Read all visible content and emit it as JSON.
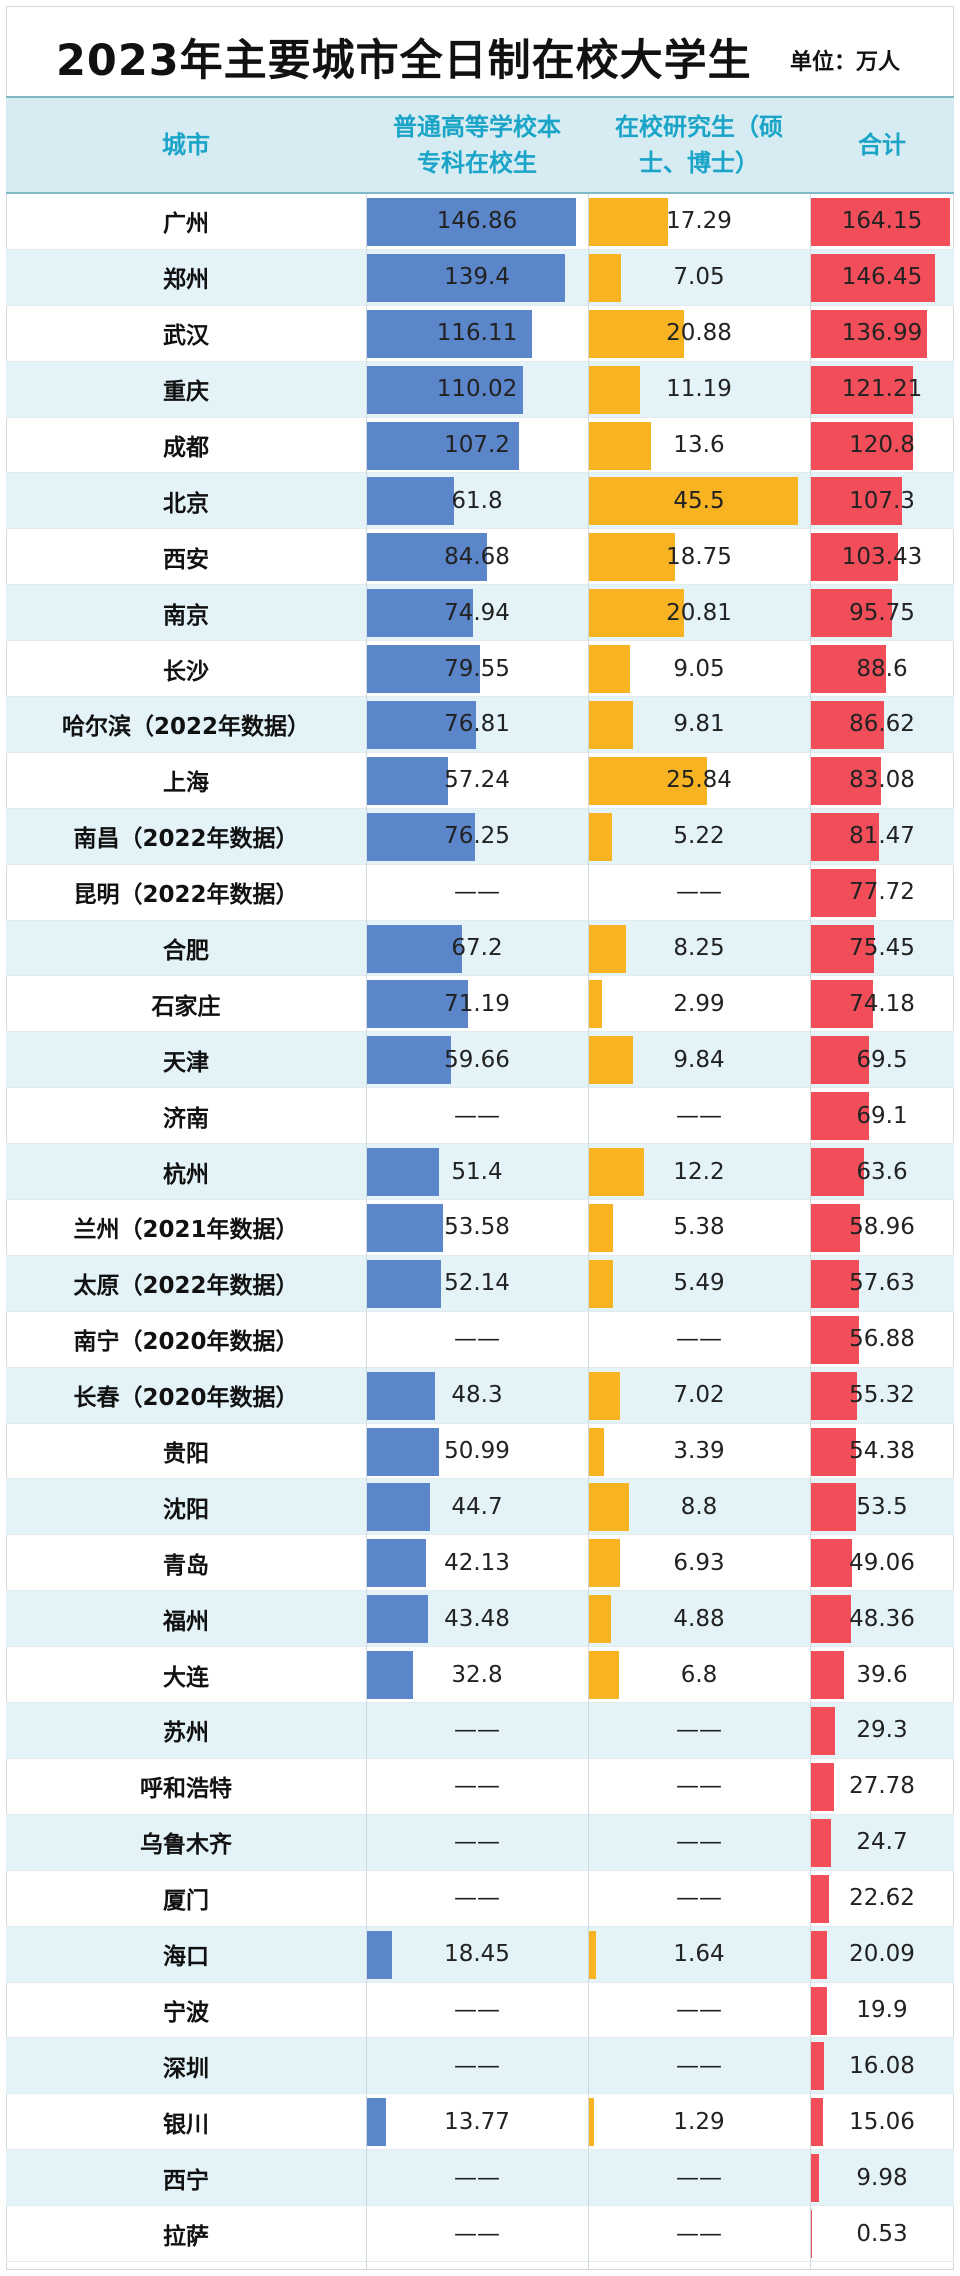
{
  "title": "2023年主要城市全日制在校大学生",
  "unit": "单位：万人",
  "headers": {
    "city": "城市",
    "undergrad_line1": "普通高等学校本",
    "undergrad_line2": "专科在校生",
    "postgrad_line1": "在校研究生（硕",
    "postgrad_line2": "士、博士）",
    "total": "合计"
  },
  "colors": {
    "undergrad_bar": "#5b86c9",
    "postgrad_bar": "#f8b323",
    "total_bar": "#f24e5a",
    "header_bg": "#d7ecf2",
    "header_text": "#1aa4c8",
    "alt_row": "#e3f3f8"
  },
  "chart_data": {
    "type": "table",
    "title": "2023年主要城市全日制在校大学生",
    "unit": "单位：万人",
    "columns": [
      "城市",
      "普通高等学校本专科在校生",
      "在校研究生（硕士、博士）",
      "合计"
    ],
    "scale_max": {
      "undergrad": 146.86,
      "postgrad": 45.5,
      "total": 164.15
    },
    "rows": [
      {
        "city": "广州",
        "undergrad": "146.86",
        "postgrad": "17.29",
        "total": "164.15"
      },
      {
        "city": "郑州",
        "undergrad": "139.4",
        "postgrad": "7.05",
        "total": "146.45"
      },
      {
        "city": "武汉",
        "undergrad": "116.11",
        "postgrad": "20.88",
        "total": "136.99"
      },
      {
        "city": "重庆",
        "undergrad": "110.02",
        "postgrad": "11.19",
        "total": "121.21"
      },
      {
        "city": "成都",
        "undergrad": "107.2",
        "postgrad": "13.6",
        "total": "120.8"
      },
      {
        "city": "北京",
        "undergrad": "61.8",
        "postgrad": "45.5",
        "total": "107.3"
      },
      {
        "city": "西安",
        "undergrad": "84.68",
        "postgrad": "18.75",
        "total": "103.43"
      },
      {
        "city": "南京",
        "undergrad": "74.94",
        "postgrad": "20.81",
        "total": "95.75"
      },
      {
        "city": "长沙",
        "undergrad": "79.55",
        "postgrad": "9.05",
        "total": "88.6"
      },
      {
        "city": "哈尔滨（2022年数据）",
        "undergrad": "76.81",
        "postgrad": "9.81",
        "total": "86.62"
      },
      {
        "city": "上海",
        "undergrad": "57.24",
        "postgrad": "25.84",
        "total": "83.08"
      },
      {
        "city": "南昌（2022年数据）",
        "undergrad": "76.25",
        "postgrad": "5.22",
        "total": "81.47"
      },
      {
        "city": "昆明（2022年数据）",
        "undergrad": "——",
        "postgrad": "——",
        "total": "77.72"
      },
      {
        "city": "合肥",
        "undergrad": "67.2",
        "postgrad": "8.25",
        "total": "75.45"
      },
      {
        "city": "石家庄",
        "undergrad": "71.19",
        "postgrad": "2.99",
        "total": "74.18"
      },
      {
        "city": "天津",
        "undergrad": "59.66",
        "postgrad": "9.84",
        "total": "69.5"
      },
      {
        "city": "济南",
        "undergrad": "——",
        "postgrad": "——",
        "total": "69.1"
      },
      {
        "city": "杭州",
        "undergrad": "51.4",
        "postgrad": "12.2",
        "total": "63.6"
      },
      {
        "city": "兰州（2021年数据）",
        "undergrad": "53.58",
        "postgrad": "5.38",
        "total": "58.96"
      },
      {
        "city": "太原（2022年数据）",
        "undergrad": "52.14",
        "postgrad": "5.49",
        "total": "57.63"
      },
      {
        "city": "南宁（2020年数据）",
        "undergrad": "——",
        "postgrad": "——",
        "total": "56.88"
      },
      {
        "city": "长春（2020年数据）",
        "undergrad": "48.3",
        "postgrad": "7.02",
        "total": "55.32"
      },
      {
        "city": "贵阳",
        "undergrad": "50.99",
        "postgrad": "3.39",
        "total": "54.38"
      },
      {
        "city": "沈阳",
        "undergrad": "44.7",
        "postgrad": "8.8",
        "total": "53.5"
      },
      {
        "city": "青岛",
        "undergrad": "42.13",
        "postgrad": "6.93",
        "total": "49.06"
      },
      {
        "city": "福州",
        "undergrad": "43.48",
        "postgrad": "4.88",
        "total": "48.36"
      },
      {
        "city": "大连",
        "undergrad": "32.8",
        "postgrad": "6.8",
        "total": "39.6"
      },
      {
        "city": "苏州",
        "undergrad": "——",
        "postgrad": "——",
        "total": "29.3"
      },
      {
        "city": "呼和浩特",
        "undergrad": "——",
        "postgrad": "——",
        "total": "27.78"
      },
      {
        "city": "乌鲁木齐",
        "undergrad": "——",
        "postgrad": "——",
        "total": "24.7"
      },
      {
        "city": "厦门",
        "undergrad": "——",
        "postgrad": "——",
        "total": "22.62"
      },
      {
        "city": "海口",
        "undergrad": "18.45",
        "postgrad": "1.64",
        "total": "20.09"
      },
      {
        "city": "宁波",
        "undergrad": "——",
        "postgrad": "——",
        "total": "19.9"
      },
      {
        "city": "深圳",
        "undergrad": "——",
        "postgrad": "——",
        "total": "16.08"
      },
      {
        "city": "银川",
        "undergrad": "13.77",
        "postgrad": "1.29",
        "total": "15.06"
      },
      {
        "city": "西宁",
        "undergrad": "——",
        "postgrad": "——",
        "total": "9.98"
      },
      {
        "city": "拉萨",
        "undergrad": "——",
        "postgrad": "——",
        "total": "0.53"
      }
    ]
  }
}
